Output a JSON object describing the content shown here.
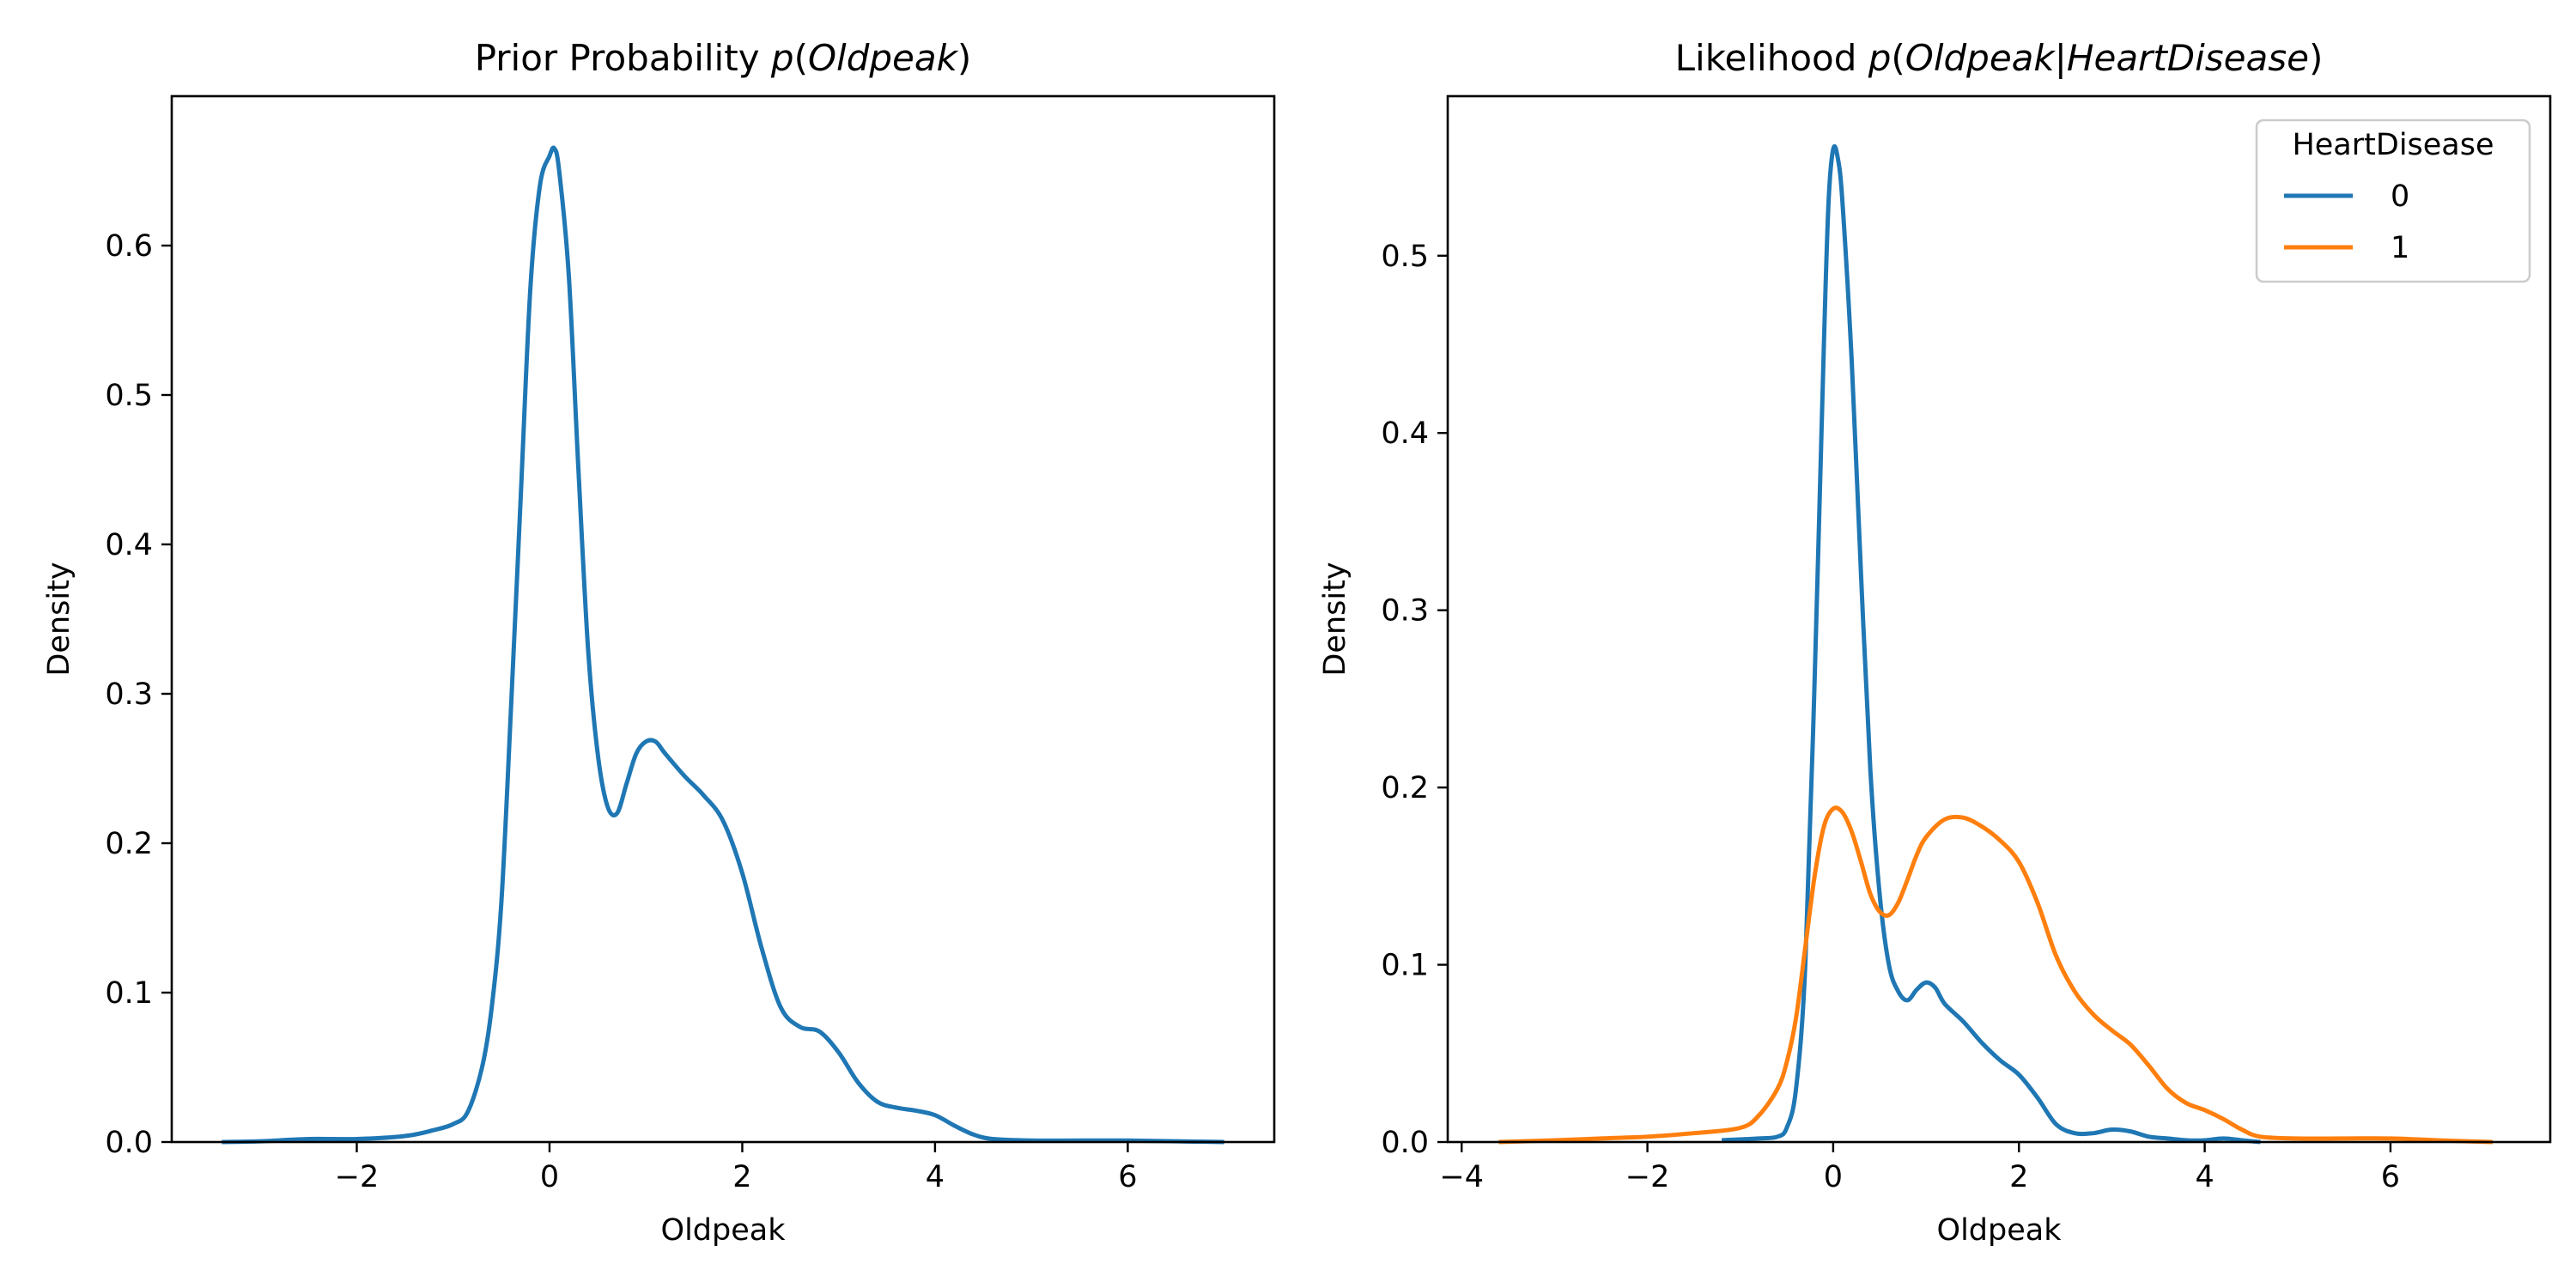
{
  "chart_data": [
    {
      "type": "line",
      "title": "Prior Probability p(Oldpeak)",
      "title_parts": [
        {
          "text": "Prior Probability ",
          "italic": false
        },
        {
          "text": "p",
          "italic": true
        },
        {
          "text": "(",
          "italic": false
        },
        {
          "text": "Oldpeak",
          "italic": true
        },
        {
          "text": ")",
          "italic": false
        }
      ],
      "xlabel": "Oldpeak",
      "ylabel": "Density",
      "xlim": [
        -3.92,
        7.52
      ],
      "ylim": [
        0,
        0.7
      ],
      "xticks": [
        -2,
        0,
        2,
        4,
        6
      ],
      "yticks": [
        0.0,
        0.1,
        0.2,
        0.3,
        0.4,
        0.5,
        0.6
      ],
      "xtick_labels": [
        "−2",
        "0",
        "2",
        "4",
        "6"
      ],
      "ytick_labels": [
        "0.0",
        "0.1",
        "0.2",
        "0.3",
        "0.4",
        "0.5",
        "0.6"
      ],
      "grid": false,
      "series": [
        {
          "color": "#1f77b4",
          "x": [
            -3.4,
            -3.0,
            -2.5,
            -2.0,
            -1.5,
            -1.2,
            -1.0,
            -0.85,
            -0.7,
            -0.6,
            -0.5,
            -0.4,
            -0.3,
            -0.2,
            -0.1,
            0.0,
            0.05,
            0.1,
            0.2,
            0.3,
            0.4,
            0.5,
            0.6,
            0.7,
            0.8,
            0.9,
            1.0,
            1.1,
            1.2,
            1.4,
            1.6,
            1.8,
            2.0,
            2.2,
            2.4,
            2.6,
            2.8,
            3.0,
            3.2,
            3.4,
            3.6,
            3.8,
            4.0,
            4.2,
            4.4,
            4.6,
            5.0,
            5.5,
            6.0,
            6.5,
            7.0
          ],
          "y": [
            0.0,
            0.0005,
            0.002,
            0.002,
            0.004,
            0.008,
            0.012,
            0.02,
            0.05,
            0.09,
            0.16,
            0.29,
            0.43,
            0.57,
            0.64,
            0.66,
            0.665,
            0.65,
            0.58,
            0.45,
            0.33,
            0.26,
            0.225,
            0.22,
            0.24,
            0.26,
            0.268,
            0.268,
            0.26,
            0.245,
            0.232,
            0.215,
            0.18,
            0.13,
            0.09,
            0.077,
            0.074,
            0.06,
            0.04,
            0.027,
            0.023,
            0.021,
            0.018,
            0.011,
            0.005,
            0.002,
            0.001,
            0.001,
            0.001,
            0.0005,
            0.0
          ]
        }
      ]
    },
    {
      "type": "line",
      "title": "Likelihood p(Oldpeak|HeartDisease)",
      "title_parts": [
        {
          "text": "Likelihood ",
          "italic": false
        },
        {
          "text": "p",
          "italic": true
        },
        {
          "text": "(",
          "italic": false
        },
        {
          "text": "Oldpeak",
          "italic": true
        },
        {
          "text": "|",
          "italic": false
        },
        {
          "text": "HeartDisease",
          "italic": true
        },
        {
          "text": ")",
          "italic": false
        }
      ],
      "xlabel": "Oldpeak",
      "ylabel": "Density",
      "xlim": [
        -4.15,
        7.72
      ],
      "ylim": [
        0,
        0.59
      ],
      "xticks": [
        -4,
        -2,
        0,
        2,
        4,
        6
      ],
      "yticks": [
        0.0,
        0.1,
        0.2,
        0.3,
        0.4,
        0.5
      ],
      "xtick_labels": [
        "−4",
        "−2",
        "0",
        "2",
        "4",
        "6"
      ],
      "ytick_labels": [
        "0.0",
        "0.1",
        "0.2",
        "0.3",
        "0.4",
        "0.5"
      ],
      "grid": false,
      "legend": {
        "title": "HeartDisease",
        "placement": "top-right"
      },
      "series": [
        {
          "name": "0",
          "color": "#1f77b4",
          "x": [
            -1.2,
            -0.8,
            -0.6,
            -0.5,
            -0.4,
            -0.3,
            -0.2,
            -0.1,
            -0.05,
            0.0,
            0.05,
            0.1,
            0.2,
            0.3,
            0.4,
            0.5,
            0.6,
            0.7,
            0.8,
            0.9,
            1.0,
            1.1,
            1.2,
            1.4,
            1.6,
            1.8,
            2.0,
            2.2,
            2.4,
            2.6,
            2.8,
            3.0,
            3.2,
            3.4,
            3.6,
            3.8,
            4.0,
            4.2,
            4.4,
            4.6
          ],
          "y": [
            0.001,
            0.002,
            0.003,
            0.008,
            0.03,
            0.1,
            0.26,
            0.45,
            0.53,
            0.56,
            0.555,
            0.53,
            0.44,
            0.32,
            0.21,
            0.14,
            0.1,
            0.085,
            0.08,
            0.086,
            0.09,
            0.087,
            0.078,
            0.068,
            0.056,
            0.046,
            0.038,
            0.025,
            0.01,
            0.005,
            0.005,
            0.007,
            0.006,
            0.003,
            0.002,
            0.001,
            0.001,
            0.002,
            0.001,
            0.0
          ]
        },
        {
          "name": "1",
          "color": "#ff7f0e",
          "x": [
            -3.6,
            -3.0,
            -2.5,
            -2.0,
            -1.5,
            -1.0,
            -0.8,
            -0.6,
            -0.5,
            -0.4,
            -0.3,
            -0.2,
            -0.1,
            0.0,
            0.1,
            0.2,
            0.3,
            0.4,
            0.5,
            0.6,
            0.7,
            0.8,
            0.9,
            1.0,
            1.2,
            1.4,
            1.6,
            1.8,
            2.0,
            2.2,
            2.4,
            2.6,
            2.8,
            3.0,
            3.2,
            3.4,
            3.6,
            3.8,
            4.0,
            4.2,
            4.4,
            4.6,
            5.0,
            5.5,
            6.0,
            6.5,
            7.1
          ],
          "y": [
            0.0,
            0.001,
            0.002,
            0.003,
            0.005,
            0.008,
            0.015,
            0.03,
            0.045,
            0.07,
            0.11,
            0.15,
            0.178,
            0.188,
            0.186,
            0.175,
            0.158,
            0.14,
            0.13,
            0.128,
            0.135,
            0.148,
            0.162,
            0.172,
            0.182,
            0.183,
            0.178,
            0.17,
            0.158,
            0.135,
            0.105,
            0.085,
            0.072,
            0.063,
            0.055,
            0.043,
            0.03,
            0.022,
            0.018,
            0.013,
            0.007,
            0.003,
            0.002,
            0.002,
            0.002,
            0.001,
            0.0
          ]
        }
      ]
    }
  ]
}
